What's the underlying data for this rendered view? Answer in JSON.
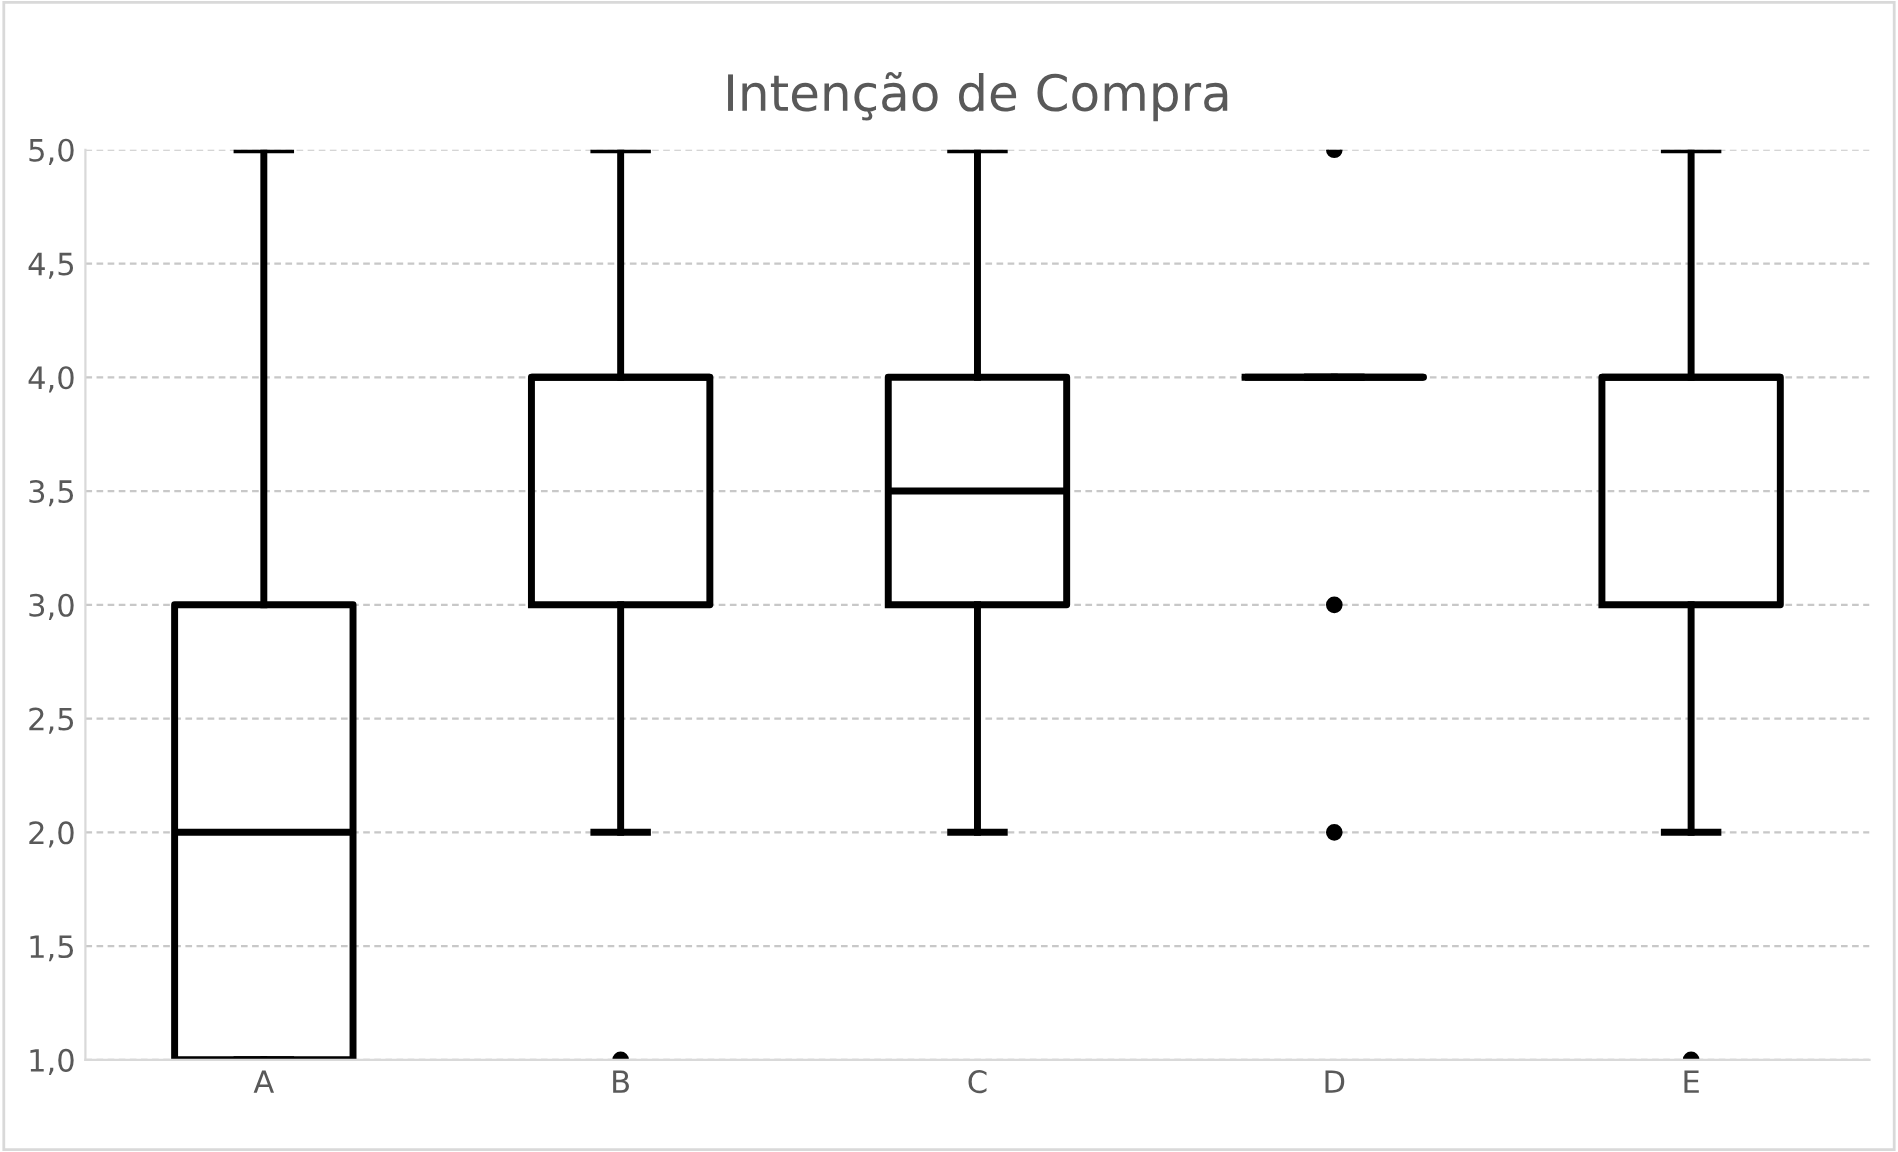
{
  "chart_data": {
    "type": "box",
    "title": "Intenção de Compra",
    "categories": [
      "A",
      "B",
      "C",
      "D",
      "E"
    ],
    "boxes": [
      {
        "low": 1,
        "q1": 1,
        "median": 2,
        "q3": 3,
        "high": 5
      },
      {
        "low": 2,
        "q1": 3,
        "median": 4,
        "q3": 4,
        "high": 5,
        "outliers": [
          1
        ]
      },
      {
        "low": 2,
        "q1": 3,
        "median": 3.5,
        "q3": 4,
        "high": 5
      },
      {
        "low": 4,
        "q1": 4,
        "median": 4,
        "q3": 4,
        "high": 4,
        "outliers": [
          5,
          3,
          2
        ]
      },
      {
        "low": 2,
        "q1": 3,
        "median": 4,
        "q3": 4,
        "high": 5,
        "outliers": [
          1
        ]
      }
    ],
    "color": "#000000",
    "ylim": [
      1,
      5
    ],
    "yticks": [
      {
        "value": 1,
        "label": "1,0"
      },
      {
        "value": 1.5,
        "label": "1,5"
      },
      {
        "value": 2,
        "label": "2,0"
      },
      {
        "value": 2.5,
        "label": "2,5"
      },
      {
        "value": 3,
        "label": "3,0"
      },
      {
        "value": 3.5,
        "label": "3,5"
      },
      {
        "value": 4,
        "label": "4,0"
      },
      {
        "value": 4.5,
        "label": "4,5"
      },
      {
        "value": 5,
        "label": "5,0"
      }
    ],
    "grid": "y",
    "legend": false
  }
}
